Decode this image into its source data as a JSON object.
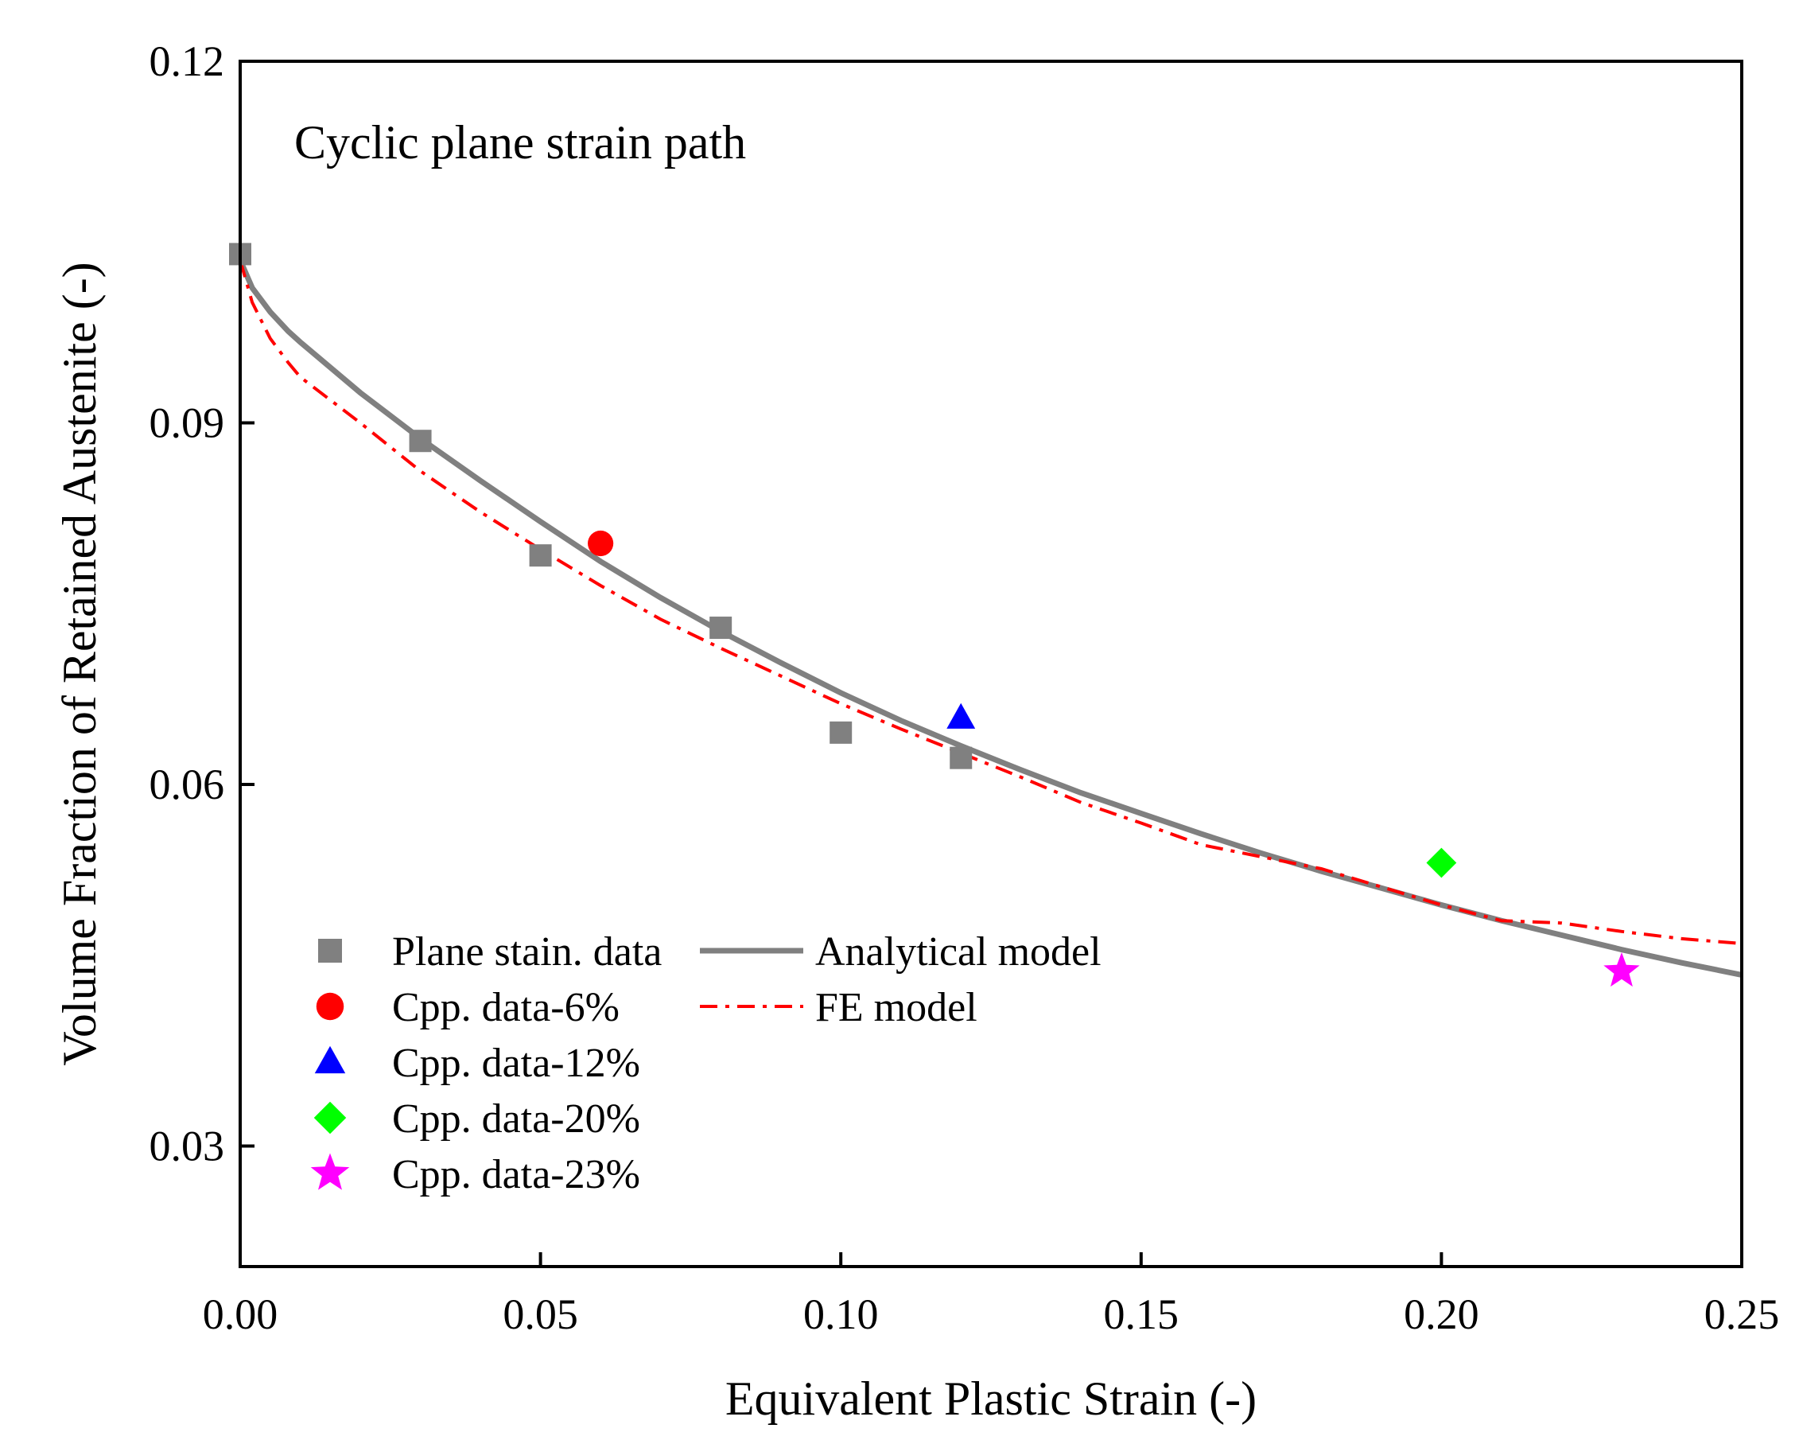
{
  "chart_data": {
    "type": "scatter",
    "annotation": "Cyclic plane strain path",
    "xlabel": "Equivalent Plastic Strain (-)",
    "ylabel": "Volume Fraction of Retained Austenite (-)",
    "xlim": [
      0,
      0.25
    ],
    "ylim": [
      0.02,
      0.12
    ],
    "x_ticks": [
      "0.00",
      "0.05",
      "0.10",
      "0.15",
      "0.20",
      "0.25"
    ],
    "y_ticks": [
      "0.03",
      "0.06",
      "0.09",
      "0.12"
    ],
    "x_tick_values": [
      0,
      0.05,
      0.1,
      0.15,
      0.2,
      0.25
    ],
    "y_tick_values": [
      0.03,
      0.06,
      0.09,
      0.12
    ],
    "grid": false,
    "legend_position": "bottom-left",
    "scatter_series": [
      {
        "name": "Plane stain. data",
        "marker": "square",
        "color": "#808080",
        "points": [
          [
            0,
            0.104
          ],
          [
            0.03,
            0.0885
          ],
          [
            0.05,
            0.079
          ],
          [
            0.08,
            0.073
          ],
          [
            0.1,
            0.0643
          ],
          [
            0.12,
            0.0622
          ]
        ]
      },
      {
        "name": "Cpp. data-6%",
        "marker": "circle",
        "color": "#ff0000",
        "points": [
          [
            0.06,
            0.08
          ]
        ]
      },
      {
        "name": "Cpp. data-12%",
        "marker": "triangle",
        "color": "#0000ff",
        "points": [
          [
            0.12,
            0.0655
          ]
        ]
      },
      {
        "name": "Cpp. data-20%",
        "marker": "diamond",
        "color": "#00ff00",
        "points": [
          [
            0.2,
            0.0535
          ]
        ]
      },
      {
        "name": "Cpp. data-23%",
        "marker": "star",
        "color": "#ff00ff",
        "points": [
          [
            0.23,
            0.0445
          ]
        ]
      }
    ],
    "line_series": [
      {
        "name": "Analytical model",
        "style": "solid",
        "color": "#808080",
        "points": [
          [
            0,
            0.1035
          ],
          [
            0.002,
            0.1012
          ],
          [
            0.005,
            0.0992
          ],
          [
            0.008,
            0.0976
          ],
          [
            0.01,
            0.0967
          ],
          [
            0.02,
            0.0925
          ],
          [
            0.03,
            0.0887
          ],
          [
            0.04,
            0.0852
          ],
          [
            0.05,
            0.0818
          ],
          [
            0.06,
            0.0785
          ],
          [
            0.07,
            0.0755
          ],
          [
            0.08,
            0.0727
          ],
          [
            0.09,
            0.0701
          ],
          [
            0.1,
            0.0676
          ],
          [
            0.11,
            0.0653
          ],
          [
            0.12,
            0.0632
          ],
          [
            0.13,
            0.0612
          ],
          [
            0.14,
            0.0593
          ],
          [
            0.15,
            0.0576
          ],
          [
            0.16,
            0.0559
          ],
          [
            0.17,
            0.0543
          ],
          [
            0.18,
            0.0528
          ],
          [
            0.19,
            0.0514
          ],
          [
            0.2,
            0.05
          ],
          [
            0.21,
            0.0487
          ],
          [
            0.22,
            0.0475
          ],
          [
            0.23,
            0.0463
          ],
          [
            0.24,
            0.0452
          ],
          [
            0.25,
            0.0442
          ]
        ]
      },
      {
        "name": "FE model",
        "style": "dashdot",
        "color": "#ff0000",
        "points": [
          [
            0,
            0.1035
          ],
          [
            0.002,
            0.1
          ],
          [
            0.005,
            0.097
          ],
          [
            0.008,
            0.095
          ],
          [
            0.01,
            0.0938
          ],
          [
            0.02,
            0.09
          ],
          [
            0.03,
            0.086
          ],
          [
            0.04,
            0.0826
          ],
          [
            0.05,
            0.0795
          ],
          [
            0.06,
            0.0765
          ],
          [
            0.07,
            0.0737
          ],
          [
            0.08,
            0.0713
          ],
          [
            0.09,
            0.069
          ],
          [
            0.1,
            0.0667
          ],
          [
            0.11,
            0.0646
          ],
          [
            0.12,
            0.0626
          ],
          [
            0.13,
            0.0606
          ],
          [
            0.14,
            0.0585
          ],
          [
            0.15,
            0.0568
          ],
          [
            0.16,
            0.055
          ],
          [
            0.17,
            0.054
          ],
          [
            0.18,
            0.053
          ],
          [
            0.19,
            0.0515
          ],
          [
            0.2,
            0.05
          ],
          [
            0.21,
            0.0487
          ],
          [
            0.22,
            0.0485
          ],
          [
            0.23,
            0.0478
          ],
          [
            0.24,
            0.0472
          ],
          [
            0.25,
            0.0468
          ]
        ]
      }
    ]
  }
}
